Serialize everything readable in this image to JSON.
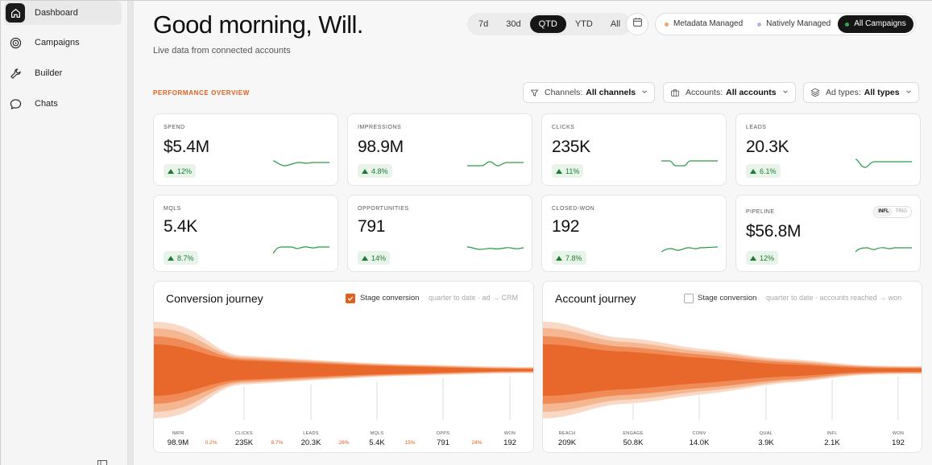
{
  "sidebar": {
    "items": [
      {
        "label": "Dashboard",
        "icon": "home-icon",
        "active": true
      },
      {
        "label": "Campaigns",
        "icon": "target-icon",
        "active": false
      },
      {
        "label": "Builder",
        "icon": "wrench-icon",
        "active": false
      },
      {
        "label": "Chats",
        "icon": "chat-bubble-icon",
        "active": false
      }
    ]
  },
  "header": {
    "greeting": "Good morning, Will.",
    "subtitle": "Live data from connected accounts",
    "ranges": [
      "7d",
      "30d",
      "QTD",
      "YTD",
      "All"
    ],
    "active_range": "QTD",
    "management": [
      {
        "label": "Metadata Managed",
        "color": "#f0a36b"
      },
      {
        "label": "Natively Managed",
        "color": "#b8aee0"
      },
      {
        "label": "All Campaigns",
        "color": "#2faa4a"
      }
    ]
  },
  "overview": {
    "section_label": "PERFORMANCE OVERVIEW",
    "filters": [
      {
        "label": "Channels:",
        "value": "All channels",
        "icon": "filter-icon"
      },
      {
        "label": "Accounts:",
        "value": "All accounts",
        "icon": "briefcase-icon"
      },
      {
        "label": "Ad types:",
        "value": "All types",
        "icon": "layers-icon"
      }
    ]
  },
  "kpis": [
    {
      "label": "SPEND",
      "value": "$5.4M",
      "change": "12%"
    },
    {
      "label": "IMPRESSIONS",
      "value": "98.9M",
      "change": "4.8%"
    },
    {
      "label": "CLICKS",
      "value": "235K",
      "change": "11%"
    },
    {
      "label": "LEADS",
      "value": "20.3K",
      "change": "6.1%"
    },
    {
      "label": "MQLS",
      "value": "5.4K",
      "change": "8.7%"
    },
    {
      "label": "OPPORTUNITIES",
      "value": "791",
      "change": "14%"
    },
    {
      "label": "CLOSED-WON",
      "value": "192",
      "change": "7.8%"
    },
    {
      "label": "PIPELINE",
      "value": "$56.8M",
      "change": "12%",
      "toggle": [
        "INFL",
        "TRIG"
      ]
    }
  ],
  "conversion_journey": {
    "title": "Conversion journey",
    "checkbox_label": "Stage conversion",
    "checked": true,
    "note": "quarter to date · ad → CRM",
    "stages": [
      {
        "label": "IMPR",
        "value": "98.9M"
      },
      {
        "label": "CLICKS",
        "value": "235K"
      },
      {
        "label": "LEADS",
        "value": "20.3K"
      },
      {
        "label": "MQLS",
        "value": "5.4K"
      },
      {
        "label": "OPPS",
        "value": "791"
      },
      {
        "label": "WON",
        "value": "192"
      }
    ],
    "rates": [
      "0.2%",
      "8.7%",
      "26%",
      "15%",
      "24%"
    ]
  },
  "account_journey": {
    "title": "Account journey",
    "checkbox_label": "Stage conversion",
    "checked": false,
    "note": "quarter to date · accounts reached → won",
    "stages": [
      {
        "label": "REACH",
        "value": "209K"
      },
      {
        "label": "ENGAGE",
        "value": "50.8K"
      },
      {
        "label": "CONV",
        "value": "14.0K"
      },
      {
        "label": "QUAL",
        "value": "3.9K"
      },
      {
        "label": "INFL",
        "value": "2.1K"
      },
      {
        "label": "WON",
        "value": "192"
      }
    ]
  },
  "colors": {
    "accent": "#e0601e",
    "positive": "#1e7a34",
    "spark": "#2a9a47"
  }
}
